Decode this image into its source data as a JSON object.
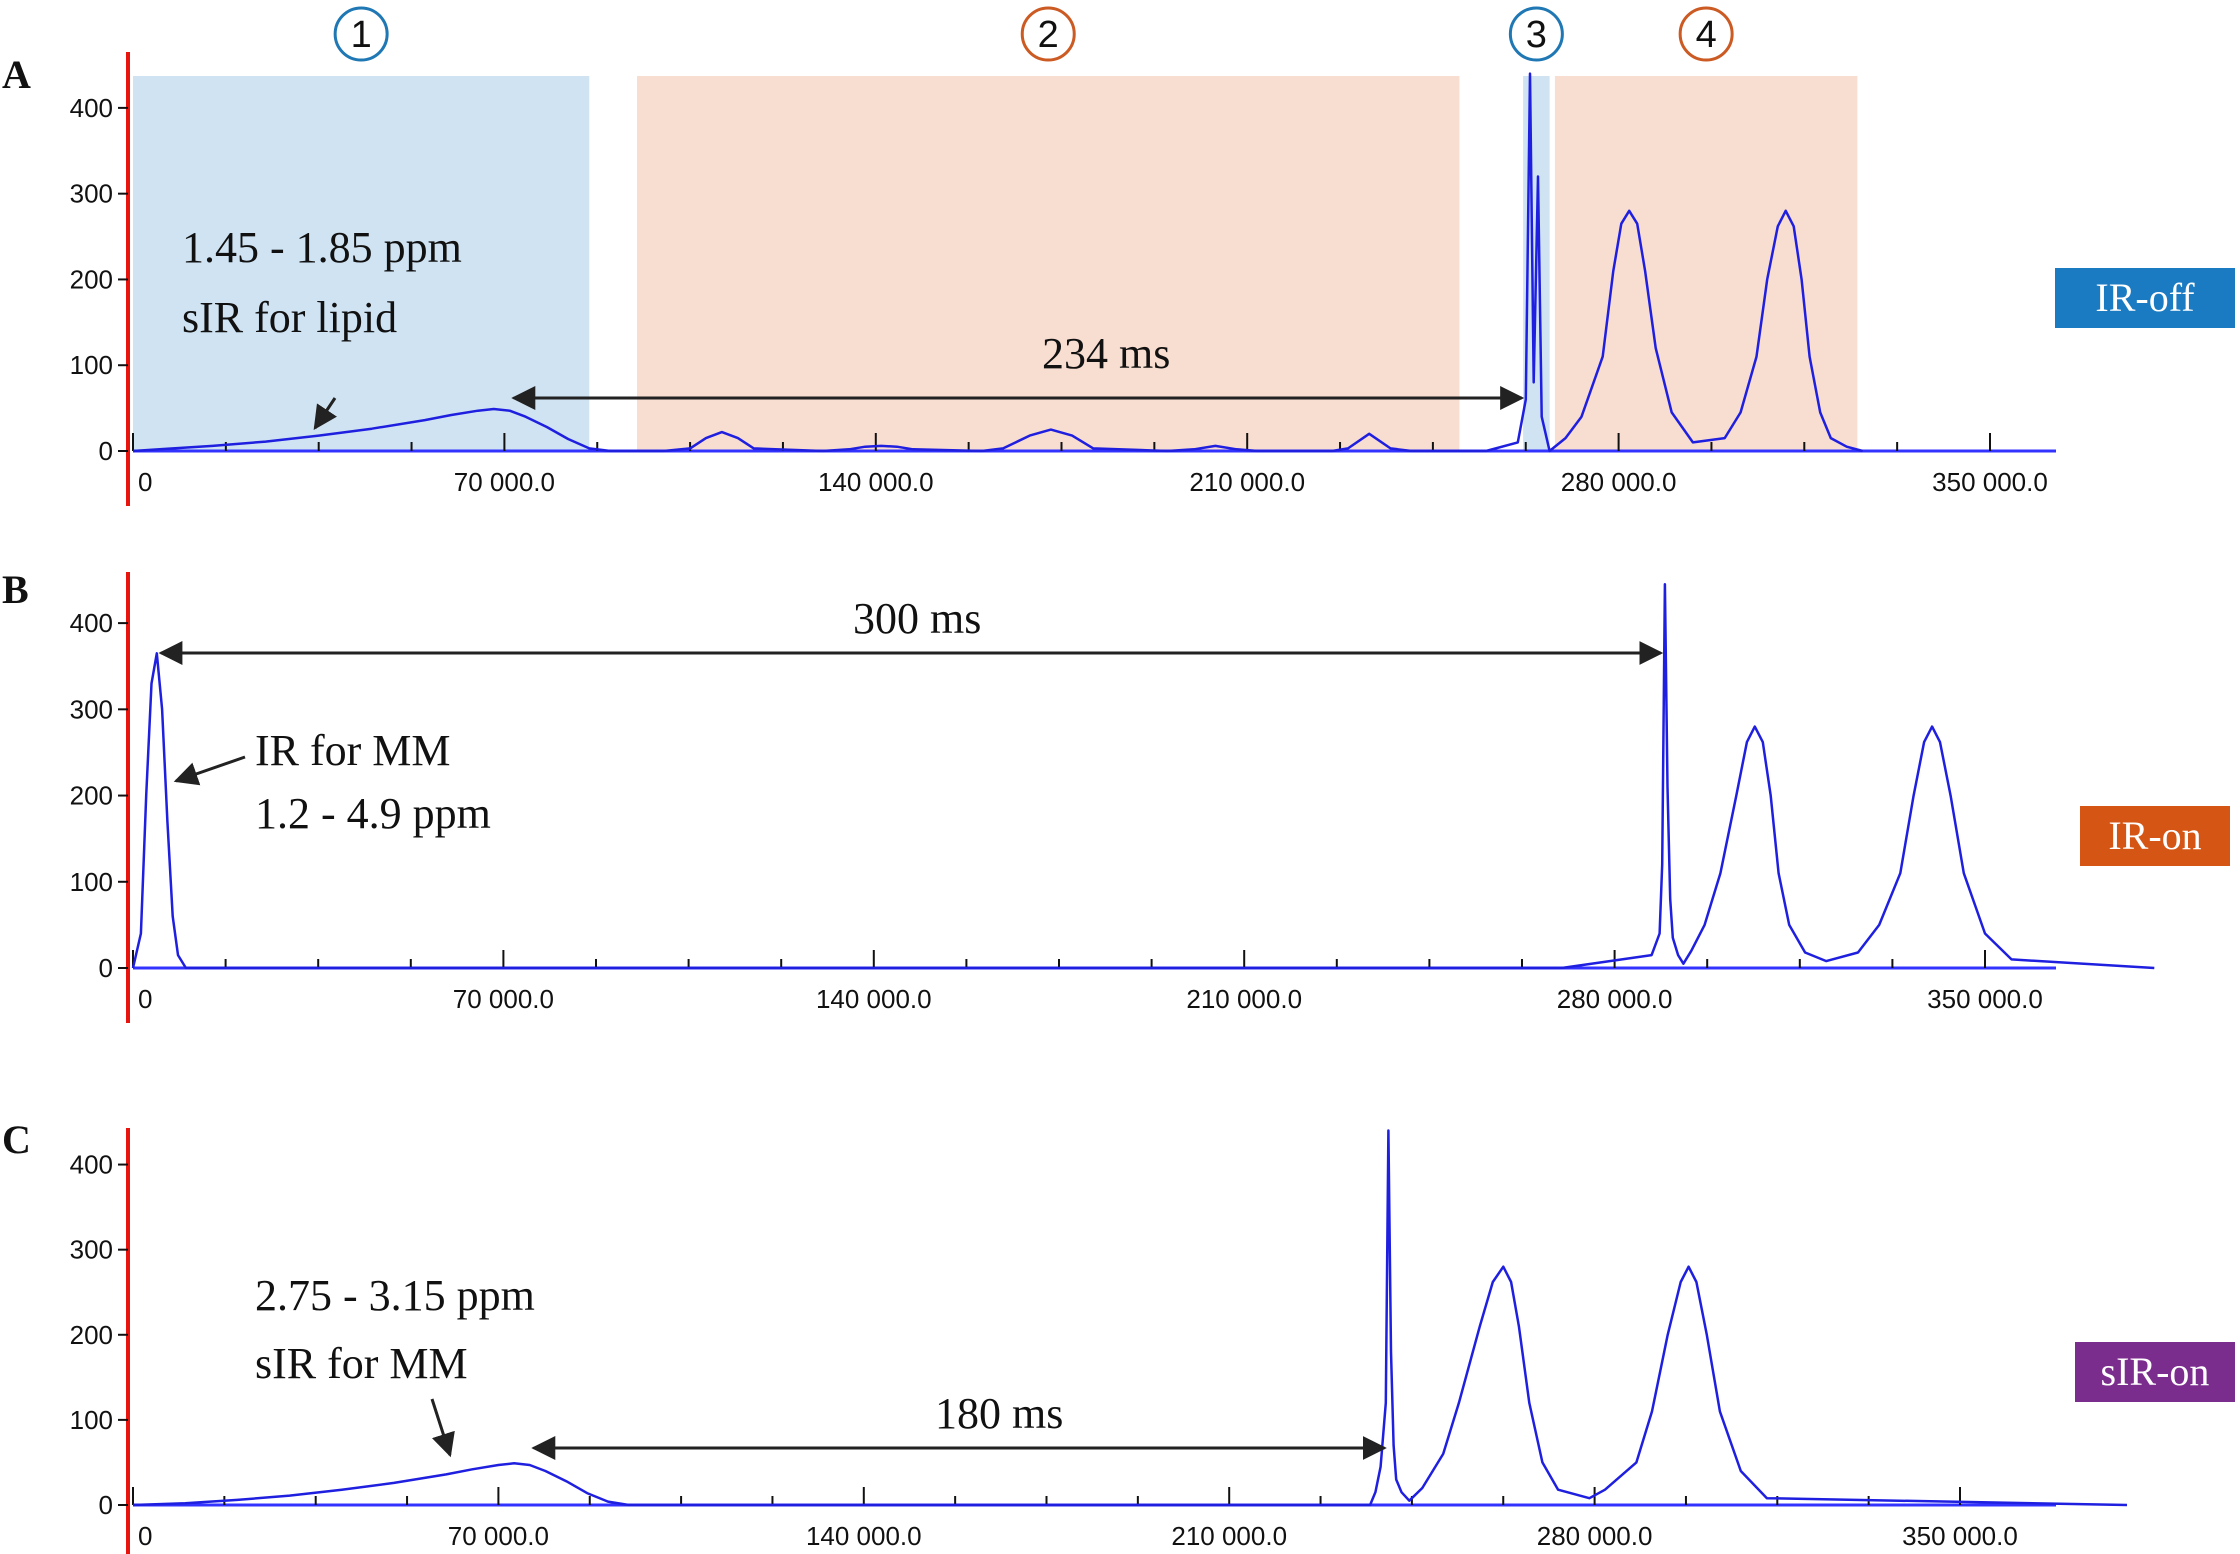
{
  "colors": {
    "signal": "#1f1fe0",
    "y_axis": "#e8150f",
    "x_axis": "#3333ff",
    "region_blue_fill": "#cfe3f2",
    "region_orange_fill": "#f8ddd1",
    "region_blue_text": "#1f78b4",
    "region_orange_text": "#cc5a23",
    "arrow": "#222222"
  },
  "regions": [
    {
      "id": "1",
      "label": "1",
      "type": "blue",
      "x_start": 0,
      "x_end": 86000
    },
    {
      "id": "2",
      "label": "2",
      "type": "orange",
      "x_start": 95000,
      "x_end": 250000
    },
    {
      "id": "3",
      "label": "3",
      "type": "blue",
      "x_start": 262000,
      "x_end": 267000
    },
    {
      "id": "4",
      "label": "4",
      "type": "orange",
      "x_start": 268000,
      "x_end": 325000
    }
  ],
  "chart_data": [
    {
      "panel": "A",
      "type": "line",
      "mode_label": "IR-off",
      "mode_color": "#1a7bc2",
      "y_ticks": [
        0,
        100,
        200,
        300,
        400
      ],
      "x_ticks": [
        0,
        70000,
        140000,
        210000,
        280000,
        350000
      ],
      "x_tick_labels": [
        "0",
        "70 000.0",
        "140 000.0",
        "210 000.0",
        "280 000.0",
        "350 000.0"
      ],
      "xlim": [
        0,
        326000
      ],
      "ylim": [
        0,
        450
      ],
      "series": [
        {
          "x": [
            0,
            5000,
            15000,
            25000,
            35000,
            45000,
            55000,
            60000,
            65000,
            68000,
            71000,
            74000,
            78000,
            82000,
            86000,
            90000,
            100000,
            105000,
            108000,
            111000,
            114000,
            117000,
            130000,
            135000,
            138000,
            141000,
            144000,
            147000,
            160000,
            164000,
            169000,
            173000,
            177000,
            181000,
            195000,
            200000,
            204000,
            208000,
            212000,
            226000,
            229000,
            233000,
            237000,
            241000,
            255000,
            261000,
            262500,
            263300,
            264000,
            264800,
            265500,
            267000,
            270000,
            273000,
            277000,
            279000,
            280500,
            282000,
            283500,
            285000,
            287000,
            290000,
            294000,
            300000,
            303000,
            306000,
            308000,
            310000,
            311500,
            313000,
            314500,
            316000,
            318000,
            320000,
            323000,
            326000
          ],
          "y": [
            0,
            2,
            6,
            11,
            18,
            26,
            36,
            42,
            47,
            49,
            47,
            40,
            28,
            14,
            3,
            0,
            0,
            3,
            15,
            22,
            15,
            3,
            0,
            2,
            5,
            6,
            5,
            2,
            0,
            3,
            18,
            25,
            18,
            3,
            0,
            2,
            6,
            2,
            0,
            0,
            3,
            20,
            3,
            0,
            0,
            10,
            60,
            440,
            80,
            320,
            40,
            0,
            15,
            40,
            110,
            210,
            265,
            280,
            265,
            210,
            120,
            45,
            10,
            15,
            45,
            110,
            200,
            262,
            280,
            262,
            200,
            110,
            45,
            15,
            5,
            0
          ]
        }
      ],
      "annotations": [
        {
          "lines": [
            "1.45 - 1.85 ppm",
            "sIR for lipid"
          ]
        },
        {
          "text": "234 ms",
          "x_start": 71000,
          "x_end": 262500
        }
      ]
    },
    {
      "panel": "B",
      "type": "line",
      "mode_label": "IR-on",
      "mode_color": "#d45514",
      "y_ticks": [
        0,
        100,
        200,
        300,
        400
      ],
      "x_ticks": [
        0,
        70000,
        140000,
        210000,
        280000,
        350000
      ],
      "x_tick_labels": [
        "0",
        "70 000.0",
        "140 000.0",
        "210 000.0",
        "280 000.0",
        "350 000.0"
      ],
      "xlim": [
        0,
        382000
      ],
      "ylim": [
        0,
        450
      ],
      "series": [
        {
          "x": [
            0,
            1500,
            2500,
            3500,
            4500,
            5500,
            6500,
            7500,
            8500,
            10000,
            270000,
            287000,
            288500,
            289000,
            289500,
            290000,
            290500,
            291000,
            292000,
            293000,
            294500,
            297000,
            300000,
            303000,
            305000,
            306500,
            308000,
            309500,
            311000,
            313000,
            316000,
            320000,
            326000,
            330000,
            334000,
            336500,
            338500,
            340000,
            341500,
            343500,
            346000,
            350000,
            355000,
            382000
          ],
          "y": [
            0,
            40,
            200,
            330,
            365,
            300,
            170,
            60,
            15,
            0,
            0,
            15,
            40,
            120,
            445,
            210,
            80,
            35,
            15,
            5,
            20,
            50,
            110,
            200,
            262,
            280,
            262,
            200,
            110,
            50,
            18,
            8,
            18,
            50,
            110,
            200,
            262,
            280,
            262,
            200,
            110,
            40,
            10,
            0
          ]
        }
      ],
      "annotations": [
        {
          "lines": [
            "IR for MM",
            "1.2 - 4.9 ppm"
          ]
        },
        {
          "text": "300 ms",
          "x_start": 4500,
          "x_end": 289500
        }
      ]
    },
    {
      "panel": "C",
      "type": "line",
      "mode_label": "sIR-on",
      "mode_color": "#7b2d8e",
      "y_ticks": [
        0,
        100,
        200,
        300,
        400
      ],
      "x_ticks": [
        0,
        70000,
        140000,
        210000,
        280000,
        350000
      ],
      "x_tick_labels": [
        "0",
        "70 000.0",
        "140 000.0",
        "210 000.0",
        "280 000.0",
        "350 000.0"
      ],
      "xlim": [
        0,
        382000
      ],
      "ylim": [
        0,
        450
      ],
      "series": [
        {
          "x": [
            0,
            10000,
            20000,
            30000,
            40000,
            50000,
            60000,
            65000,
            70000,
            73000,
            76000,
            79000,
            83000,
            87000,
            91000,
            95000,
            150000,
            237000,
            238000,
            239000,
            240000,
            240500,
            241000,
            241500,
            242000,
            243000,
            244500,
            247000,
            251000,
            254000,
            258000,
            260500,
            262500,
            264000,
            265500,
            267500,
            270000,
            273000,
            279000,
            282000,
            288000,
            291000,
            294000,
            296500,
            298000,
            299500,
            301500,
            304000,
            308000,
            313000,
            382000
          ],
          "y": [
            0,
            2,
            6,
            11,
            18,
            26,
            36,
            42,
            47,
            49,
            47,
            40,
            28,
            14,
            4,
            0,
            0,
            0,
            15,
            45,
            120,
            440,
            180,
            70,
            30,
            15,
            5,
            20,
            60,
            120,
            210,
            262,
            280,
            262,
            210,
            120,
            50,
            18,
            8,
            18,
            50,
            110,
            200,
            262,
            280,
            262,
            200,
            110,
            40,
            8,
            0
          ]
        }
      ],
      "annotations": [
        {
          "lines": [
            "2.75 - 3.15 ppm",
            "sIR for MM"
          ]
        },
        {
          "text": "180 ms",
          "x_start": 76000,
          "x_end": 240500
        }
      ]
    }
  ]
}
